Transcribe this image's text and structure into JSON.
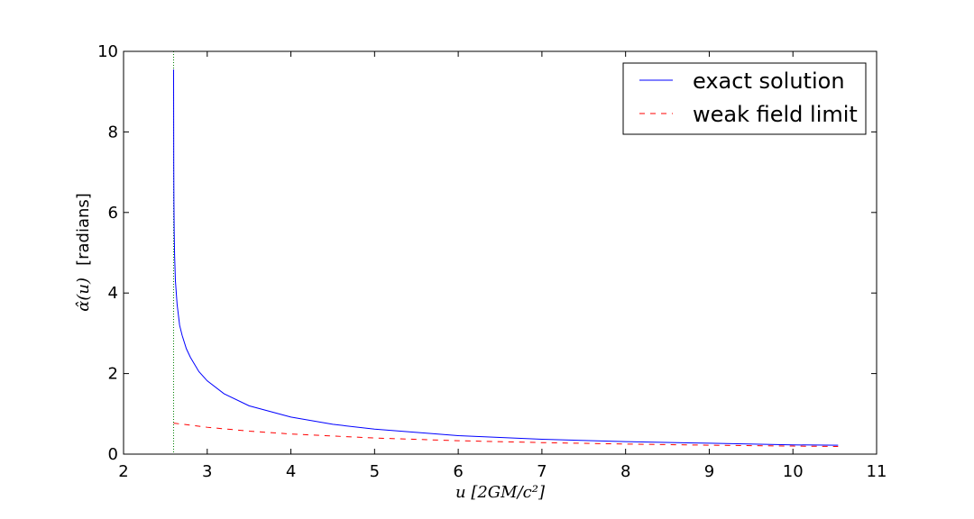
{
  "chart_data": {
    "type": "line",
    "xlabel": "u [2GM/c²]",
    "ylabel_math": "α̂(u)",
    "ylabel_text": "[radians]",
    "xlim": [
      2,
      11
    ],
    "ylim": [
      0,
      10
    ],
    "xticks": [
      "2",
      "3",
      "4",
      "5",
      "6",
      "7",
      "8",
      "9",
      "10",
      "11"
    ],
    "yticks": [
      "0",
      "2",
      "4",
      "6",
      "8",
      "10"
    ],
    "grid": false,
    "legend_position": "top-right",
    "vertical_line": {
      "x": 2.598,
      "color": "#008000",
      "style": "dotted"
    },
    "series": [
      {
        "name": "exact solution",
        "color": "#0000ff",
        "style": "solid",
        "x": [
          2.598,
          2.6,
          2.602,
          2.605,
          2.61,
          2.62,
          2.64,
          2.67,
          2.7,
          2.75,
          2.8,
          2.9,
          3.0,
          3.2,
          3.5,
          4.0,
          4.5,
          5.0,
          6.0,
          7.0,
          8.0,
          9.0,
          10.0,
          10.54
        ],
        "y": [
          9.55,
          7.2,
          6.3,
          5.55,
          4.95,
          4.3,
          3.72,
          3.2,
          2.95,
          2.62,
          2.4,
          2.05,
          1.82,
          1.5,
          1.2,
          0.92,
          0.74,
          0.62,
          0.46,
          0.37,
          0.31,
          0.27,
          0.23,
          0.22
        ]
      },
      {
        "name": "weak field limit",
        "color": "#ff0000",
        "style": "dashed",
        "x": [
          2.598,
          3.0,
          3.5,
          4.0,
          5.0,
          6.0,
          7.0,
          8.0,
          9.0,
          10.0,
          10.54
        ],
        "y": [
          0.77,
          0.667,
          0.571,
          0.5,
          0.4,
          0.333,
          0.286,
          0.25,
          0.222,
          0.2,
          0.19
        ]
      }
    ]
  }
}
